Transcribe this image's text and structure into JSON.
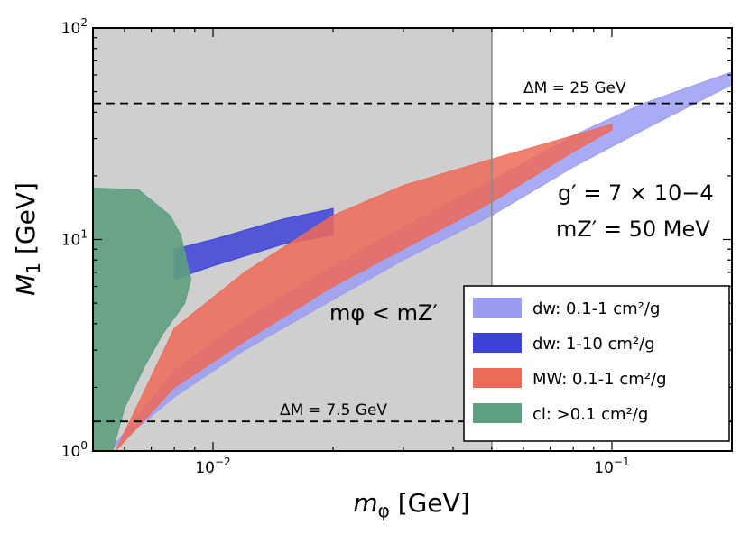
{
  "chart_data": {
    "type": "area",
    "xscale": "log",
    "yscale": "log",
    "xlim": [
      0.005,
      0.2
    ],
    "ylim": [
      1,
      100
    ],
    "xlabel": "mφ [GeV]",
    "ylabel": "M1 [GeV]",
    "x_major_ticks": [
      {
        "value": 0.01,
        "base": "10",
        "exp": "−2"
      },
      {
        "value": 0.1,
        "base": "10",
        "exp": "−1"
      }
    ],
    "y_major_ticks": [
      {
        "value": 1,
        "base": "10",
        "exp": "0"
      },
      {
        "value": 10,
        "base": "10",
        "exp": "1"
      },
      {
        "value": 100,
        "base": "10",
        "exp": "2"
      }
    ],
    "shaded_region": {
      "label": "mφ < mZ′",
      "x_max": 0.05,
      "color": "#cfcfcf"
    },
    "hlines": [
      {
        "y": 44,
        "label": "ΔM = 25 GeV"
      },
      {
        "y": 1.38,
        "label": "ΔM = 7.5 GeV"
      }
    ],
    "parameters": [
      "g′ = 7 × 10−4",
      "mZ′ = 50 MeV"
    ],
    "legend_position": "bottom-right",
    "series": [
      {
        "name": "dw: 0.1-1 cm²/g",
        "color": "#9a9cf2",
        "lower": [
          [
            0.0055,
            1.0
          ],
          [
            0.008,
            1.8
          ],
          [
            0.012,
            3.0
          ],
          [
            0.02,
            5.2
          ],
          [
            0.03,
            8.0
          ],
          [
            0.05,
            13
          ],
          [
            0.08,
            22
          ],
          [
            0.12,
            33
          ],
          [
            0.2,
            54
          ]
        ],
        "upper": [
          [
            0.0055,
            1.0
          ],
          [
            0.008,
            2.4
          ],
          [
            0.012,
            4.2
          ],
          [
            0.02,
            7.5
          ],
          [
            0.03,
            11.5
          ],
          [
            0.05,
            19
          ],
          [
            0.08,
            31
          ],
          [
            0.12,
            44
          ],
          [
            0.2,
            62
          ]
        ]
      },
      {
        "name": "dw: 1-10 cm²/g",
        "color": "#3c42d8",
        "lower": [
          [
            0.008,
            6.5
          ],
          [
            0.01,
            7.5
          ],
          [
            0.015,
            9.5
          ],
          [
            0.02,
            10.5
          ]
        ],
        "upper": [
          [
            0.008,
            9.0
          ],
          [
            0.01,
            10.0
          ],
          [
            0.015,
            12.5
          ],
          [
            0.02,
            14.0
          ]
        ]
      },
      {
        "name": "MW: 0.1-1 cm²/g",
        "color": "#ee6a58",
        "lower": [
          [
            0.0057,
            1.0
          ],
          [
            0.008,
            2.0
          ],
          [
            0.012,
            3.3
          ],
          [
            0.02,
            6.0
          ],
          [
            0.03,
            9.0
          ],
          [
            0.05,
            15
          ],
          [
            0.08,
            26
          ],
          [
            0.1,
            33
          ]
        ],
        "upper": [
          [
            0.0057,
            1.0
          ],
          [
            0.008,
            3.8
          ],
          [
            0.012,
            7.0
          ],
          [
            0.02,
            13
          ],
          [
            0.03,
            18
          ],
          [
            0.05,
            24
          ],
          [
            0.08,
            31
          ],
          [
            0.1,
            35
          ]
        ]
      },
      {
        "name": "cl: >0.1 cm²/g",
        "color": "#5d9f80",
        "boundary": [
          [
            0.005,
            17.5
          ],
          [
            0.0065,
            17.2
          ],
          [
            0.0078,
            13.0
          ],
          [
            0.0083,
            10.5
          ],
          [
            0.0088,
            6.5
          ],
          [
            0.0085,
            5.0
          ],
          [
            0.0075,
            3.6
          ],
          [
            0.0068,
            2.6
          ],
          [
            0.006,
            1.6
          ],
          [
            0.0056,
            1.0
          ]
        ]
      }
    ]
  }
}
